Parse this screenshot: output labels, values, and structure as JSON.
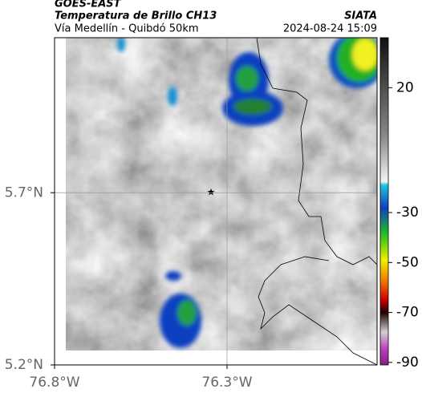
{
  "header": {
    "source": "GOES-EAST",
    "title": "Temperatura de Brillo CH13",
    "subtitle": "Vía Medellín - Quibdó 50km",
    "agency": "SIATA",
    "timestamp": "2024-08-24 15:09"
  },
  "map": {
    "xlim": [
      -76.8,
      -75.865
    ],
    "ylim": [
      5.2,
      6.15
    ],
    "xticks": [
      {
        "value": -76.8,
        "label": "76.8°W"
      },
      {
        "value": -76.3,
        "label": "76.3°W"
      }
    ],
    "yticks": [
      {
        "value": 5.2,
        "label": "5.2°N"
      },
      {
        "value": 5.7,
        "label": "5.7°N"
      }
    ],
    "grid": true
  },
  "colorbar": {
    "lim": [
      40,
      -91
    ],
    "ticks": [
      20,
      -30,
      -50,
      -70,
      -90
    ]
  }
}
